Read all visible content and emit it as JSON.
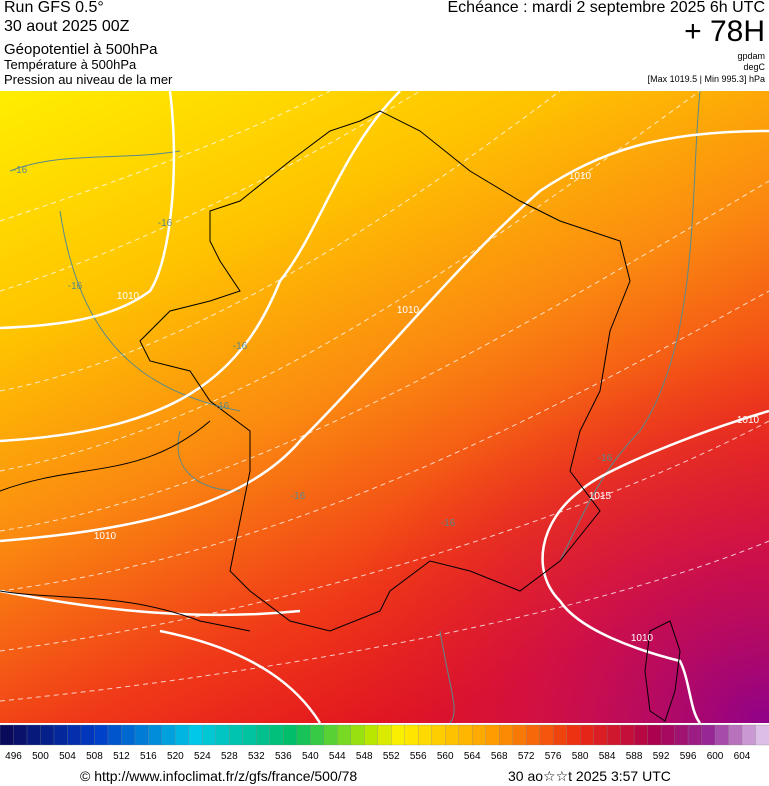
{
  "header": {
    "run": "Run GFS 0.5°",
    "run_date": "30 aout 2025 00Z",
    "layer1": "Géopotentiel à 500hPa",
    "layer2": "Température à 500hPa",
    "layer3": "Pression au niveau de la mer",
    "echeance": "Echéance : mardi 2 septembre 2025 6h UTC",
    "lead": "+ 78H",
    "unit1": "gpdam",
    "unit2": "degC",
    "range": "[Max 1019.5 | Min 995.3] hPa"
  },
  "map": {
    "contour_labels": [
      "-16",
      "-16",
      "-16",
      "1010",
      "-16",
      "-16",
      "-16",
      "1010",
      "1010",
      "-16",
      "1010",
      "1015",
      "-16",
      "1010",
      "1010"
    ]
  },
  "legend": {
    "labels": [
      496,
      500,
      504,
      508,
      512,
      516,
      520,
      524,
      528,
      532,
      536,
      540,
      544,
      548,
      552,
      556,
      560,
      564,
      568,
      572,
      576,
      580,
      584,
      588,
      592,
      596,
      600,
      604
    ]
  },
  "footer": {
    "source": "© http://www.infoclimat.fr/z/gfs/france/500/78",
    "timestamp": "30 ao☆☆t 2025  3:57 UTC"
  }
}
